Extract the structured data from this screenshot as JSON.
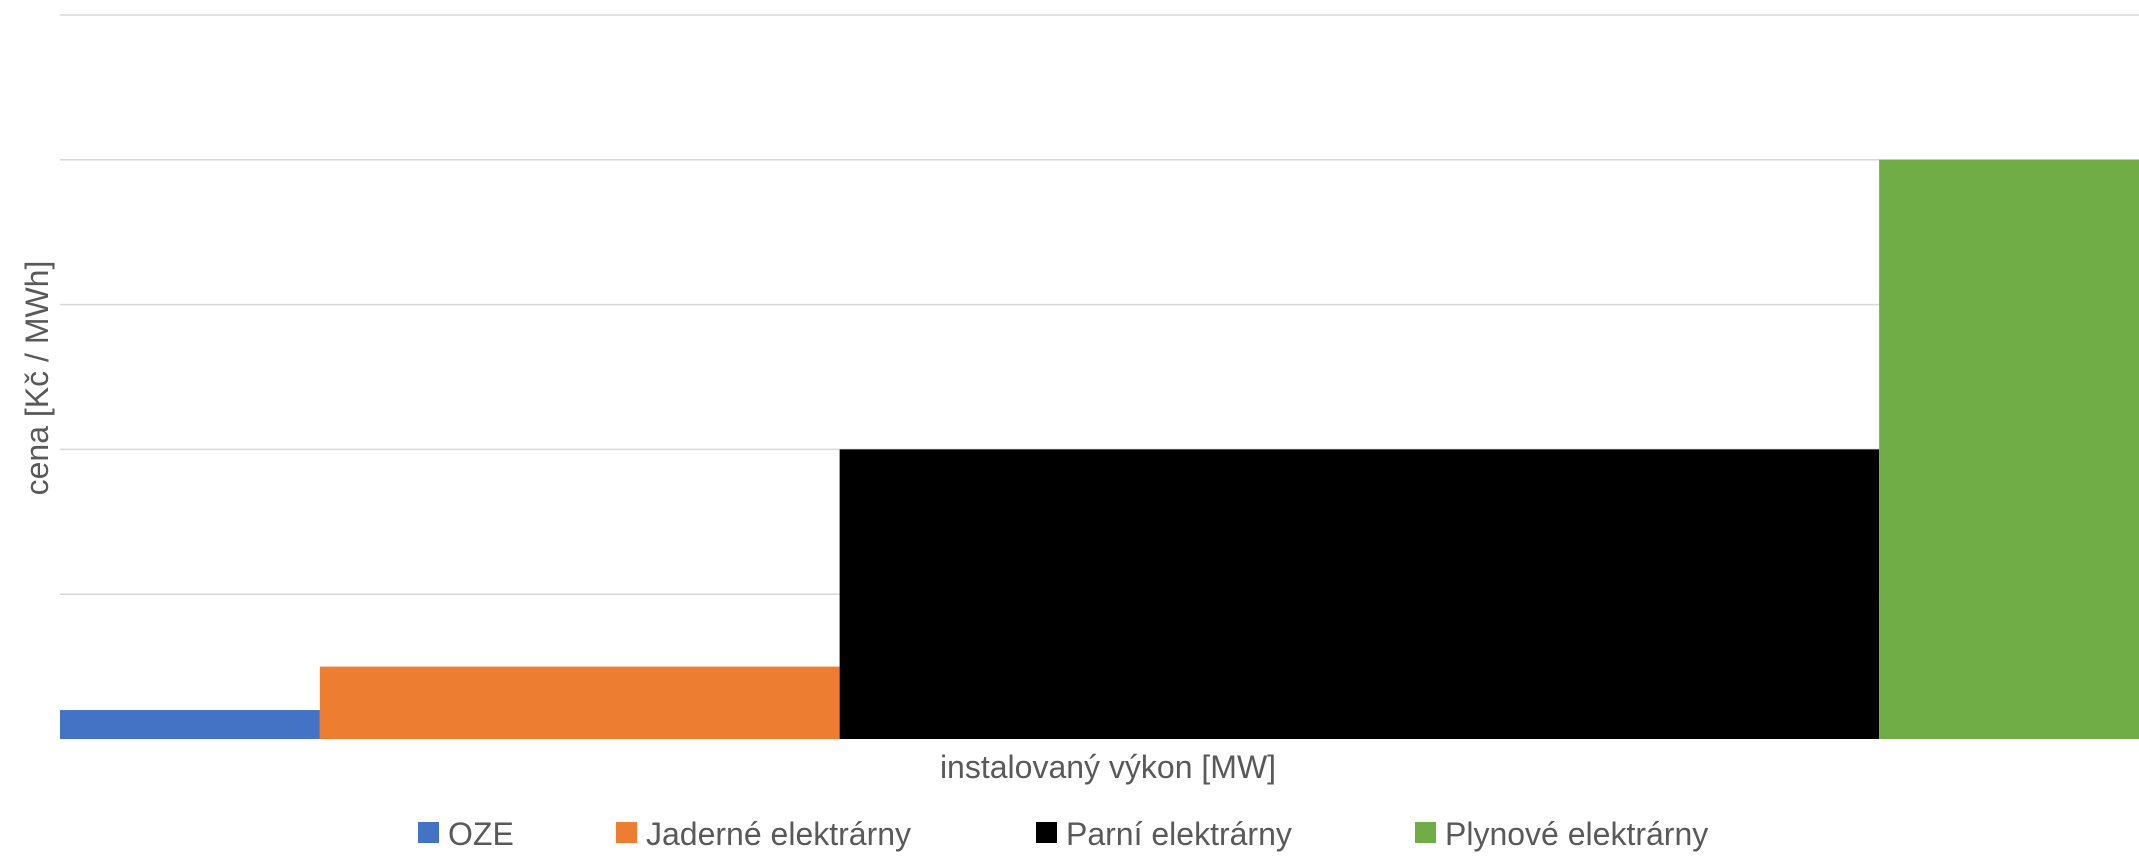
{
  "chart_data": {
    "type": "bar",
    "variant": "variable-width step (merit order)",
    "xlabel": "instalovaný výkon [MW]",
    "ylabel": "cena [Kč / MWh]",
    "ylim": [
      0,
      5
    ],
    "x_total": 8,
    "grid": true,
    "tick_labels_shown": false,
    "legend_position": "bottom",
    "series": [
      {
        "name": "OZE",
        "width": 1,
        "value": 0.2,
        "color": "#4472C4"
      },
      {
        "name": "Jaderné elektrárny",
        "width": 2,
        "value": 0.5,
        "color": "#ED7D31"
      },
      {
        "name": "Parní elektrárny",
        "width": 4,
        "value": 2,
        "color": "#000000"
      },
      {
        "name": "Plynové elektrárny",
        "width": 1,
        "value": 4,
        "color": "#70AD47"
      }
    ]
  }
}
